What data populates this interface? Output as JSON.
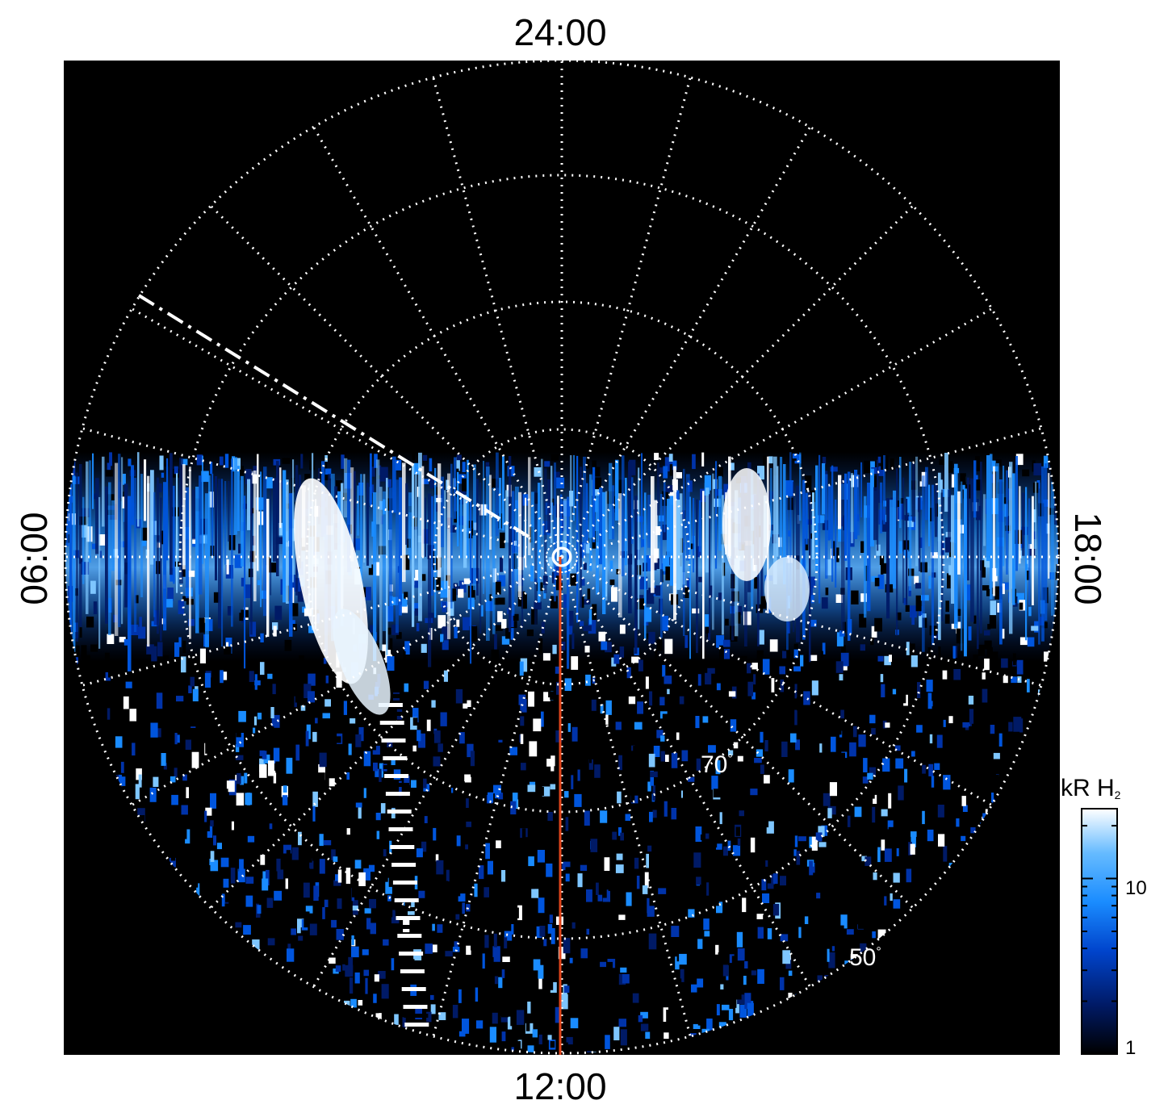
{
  "axis": {
    "top": "24:00",
    "bottom": "12:00",
    "left": "06:00",
    "right": "18:00"
  },
  "latitude_labels": {
    "inner": "70",
    "outer": "50"
  },
  "degree_symbol": "°",
  "colorbar": {
    "title_main": "kR H",
    "title_sub": "2",
    "tick_mid": "10",
    "tick_min": "1",
    "colors": [
      "#000000",
      "#001a66",
      "#0044cc",
      "#1a8cff",
      "#66bbff",
      "#ffffff"
    ]
  },
  "colors": {
    "background": "#000000",
    "grid": "#ffffff",
    "meridian_line": "#e0441a"
  }
}
